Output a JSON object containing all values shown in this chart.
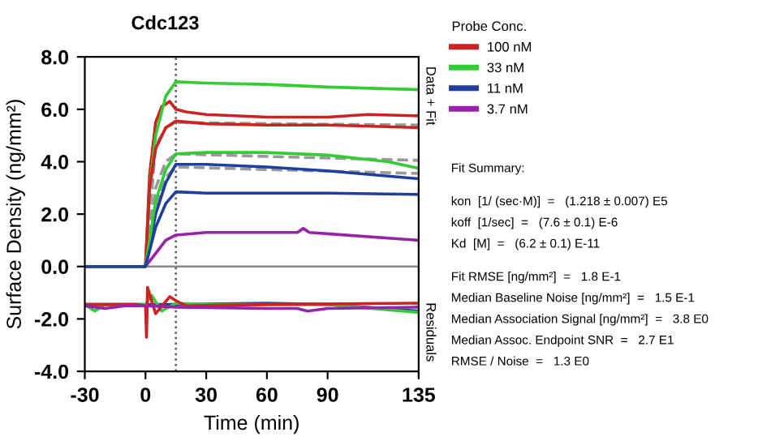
{
  "chart_data": {
    "type": "line",
    "title": "Cdc123",
    "xlabel": "Time (min)",
    "ylabel": "Surface Density (ng/mm²)",
    "legend_title": "Probe Conc.",
    "legend": "right",
    "xlim": [
      -30,
      135
    ],
    "xticks": [
      -30,
      0,
      30,
      60,
      90,
      135
    ],
    "ylim": [
      -4,
      8
    ],
    "yticks": [
      {
        "value": -4,
        "label": "-4.0"
      },
      {
        "value": -2,
        "label": "-2.0"
      },
      {
        "value": 0,
        "label": "0.0"
      },
      {
        "value": 2,
        "label": "2.0"
      },
      {
        "value": 4,
        "label": "4.0"
      },
      {
        "value": 6,
        "label": "6.0"
      },
      {
        "value": 8,
        "label": "8.0"
      }
    ],
    "grid": false,
    "marker": "none",
    "line_style": "solid",
    "ref_lines": [
      {
        "axis": "x",
        "value": 15,
        "label": null,
        "color": "#555555",
        "line_style": "dotted"
      },
      {
        "axis": "y",
        "value": 0,
        "label": null,
        "color": "#888888",
        "line_style": "solid"
      }
    ],
    "series": [
      {
        "name": null,
        "color": "#999999",
        "line_style": "dashed",
        "x": [
          0,
          5,
          10,
          15,
          60,
          135
        ],
        "values": [
          0,
          3.0,
          4.0,
          4.3,
          4.2,
          4.05
        ]
      },
      {
        "name": null,
        "color": "#999999",
        "line_style": "dashed",
        "x": [
          0,
          5,
          10,
          15,
          60,
          135
        ],
        "values": [
          0,
          4.6,
          5.3,
          5.5,
          5.45,
          5.4
        ]
      },
      {
        "name": null,
        "color": "#999999",
        "line_style": "dashed",
        "x": [
          0,
          5,
          10,
          15,
          60,
          135
        ],
        "values": [
          0,
          2.3,
          3.4,
          3.8,
          3.7,
          3.55
        ]
      },
      {
        "name": "100 nM",
        "color": "#cc2222",
        "x": [
          -30,
          -10,
          0,
          2,
          5,
          8,
          12,
          15,
          20,
          30,
          60,
          90,
          110,
          135
        ],
        "values": [
          0,
          0,
          0,
          3.5,
          5.5,
          6.1,
          6.3,
          6.0,
          5.9,
          5.8,
          5.7,
          5.7,
          5.8,
          5.75
        ]
      },
      {
        "name": "33 nM",
        "color": "#33cc33",
        "x": [
          -30,
          -10,
          0,
          2,
          5,
          10,
          15,
          30,
          60,
          90,
          135
        ],
        "values": [
          0,
          0,
          0,
          3.0,
          5.0,
          6.5,
          7.05,
          7.0,
          6.95,
          6.85,
          6.75
        ]
      },
      {
        "name": "11 nM",
        "color": "#1f3fa0",
        "x": [
          -30,
          -10,
          0,
          5,
          10,
          15,
          30,
          60,
          90,
          135
        ],
        "values": [
          0,
          0,
          0,
          2.0,
          3.2,
          3.9,
          3.9,
          3.8,
          3.65,
          3.35
        ]
      },
      {
        "name": "3.7 nM",
        "color": "#9922aa",
        "x": [
          -30,
          -10,
          0,
          5,
          10,
          15,
          30,
          60,
          75,
          78,
          81,
          90,
          135
        ],
        "values": [
          0,
          0,
          0,
          0.5,
          1.0,
          1.2,
          1.3,
          1.3,
          1.3,
          1.45,
          1.3,
          1.25,
          1.0
        ]
      },
      {
        "name": null,
        "color": "#cc2222",
        "x": [
          -30,
          -10,
          0,
          2,
          5,
          10,
          15,
          30,
          60,
          90,
          135
        ],
        "values": [
          0,
          0,
          0,
          3.0,
          4.5,
          5.3,
          5.55,
          5.45,
          5.4,
          5.4,
          5.3
        ]
      },
      {
        "name": null,
        "color": "#33cc33",
        "x": [
          -30,
          -10,
          0,
          5,
          10,
          15,
          30,
          60,
          90,
          120,
          135
        ],
        "values": [
          0,
          0,
          0,
          2.5,
          3.7,
          4.3,
          4.35,
          4.35,
          4.25,
          4.0,
          3.75
        ]
      },
      {
        "name": null,
        "color": "#1f3fa0",
        "x": [
          -30,
          -10,
          0,
          5,
          10,
          15,
          30,
          60,
          90,
          135
        ],
        "values": [
          0,
          0,
          0,
          1.5,
          2.4,
          2.85,
          2.8,
          2.8,
          2.8,
          2.75
        ]
      },
      {
        "name": null,
        "color": "#1f3fa0",
        "x": [
          -30,
          0,
          15,
          60,
          90,
          135
        ],
        "values": [
          -1.45,
          -1.45,
          -1.45,
          -1.4,
          -1.45,
          -1.7
        ]
      },
      {
        "name": null,
        "color": "#33cc33",
        "x": [
          -30,
          -25,
          -20,
          0,
          3,
          8,
          15,
          30,
          90,
          135
        ],
        "values": [
          -1.45,
          -1.7,
          -1.45,
          -1.45,
          -1.1,
          -1.7,
          -1.4,
          -1.45,
          -1.45,
          -1.75
        ]
      },
      {
        "name": null,
        "color": "#cc2222",
        "x": [
          -30,
          -5,
          0,
          0.5,
          1,
          5,
          12,
          15,
          20,
          60,
          135
        ],
        "values": [
          -1.45,
          -1.45,
          -1.5,
          -2.7,
          -0.8,
          -1.8,
          -1.15,
          -1.3,
          -1.5,
          -1.45,
          -1.4
        ]
      },
      {
        "name": null,
        "color": "#9922aa",
        "x": [
          -30,
          -20,
          -10,
          0,
          15,
          60,
          75,
          80,
          90,
          135
        ],
        "values": [
          -1.5,
          -1.6,
          -1.5,
          -1.5,
          -1.55,
          -1.6,
          -1.6,
          -1.7,
          -1.6,
          -1.55
        ]
      }
    ],
    "annotations": [
      "Data + Fit",
      "Residuals",
      "Fit Summary:",
      "kon  [1/ (sec·M)]  =   (1.218 ± 0.007) E5",
      "koff  [1/sec]  =   (7.6 ± 0.1) E-6",
      "Kd  [M]  =   (6.2 ± 0.1) E-11",
      "Fit RMSE [ng/mm²]  =   1.8 E-1",
      "Median Baseline Noise [ng/mm²]  =   1.5 E-1",
      "Median Association Signal [ng/mm²]  =   3.8 E0",
      "Median Assoc. Endpoint SNR  =   2.7 E1",
      "RMSE / Noise  =   1.3 E0"
    ]
  }
}
